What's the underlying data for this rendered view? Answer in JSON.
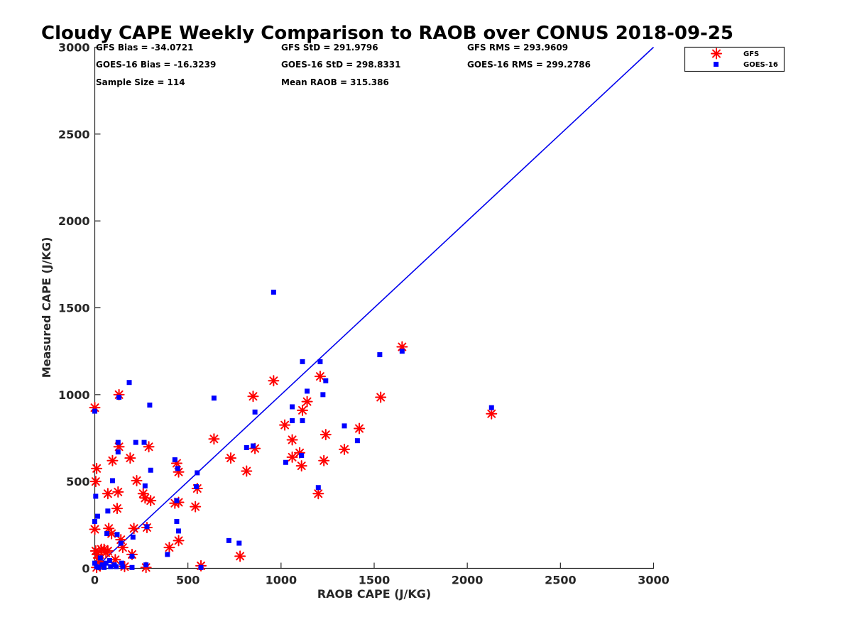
{
  "chart_data": {
    "type": "scatter",
    "title": "Cloudy CAPE Weekly Comparison to RAOB over CONUS 2018-09-25",
    "xlabel": "RAOB CAPE (J/KG)",
    "ylabel": "Measured CAPE (J/KG)",
    "xlim": [
      0,
      3000
    ],
    "ylim": [
      0,
      3000
    ],
    "xticks": [
      0,
      500,
      1000,
      1500,
      2000,
      2500,
      3000
    ],
    "yticks": [
      0,
      500,
      1000,
      1500,
      2000,
      2500,
      3000
    ],
    "grid": false,
    "legend_position": "top-right",
    "reference_line": {
      "from": [
        0,
        0
      ],
      "to": [
        3000,
        3000
      ],
      "color": "#0000ee"
    },
    "stats": [
      "GFS Bias = -34.0721",
      "GFS StD = 291.9796",
      "GFS RMS = 293.9609",
      "GOES-16 Bias = -16.3239",
      "GOES-16 StD = 298.8331",
      "GOES-16 RMS = 299.2786",
      "Sample Size = 114",
      "Mean RAOB = 315.386"
    ],
    "series": [
      {
        "name": "GFS",
        "marker": "asterisk",
        "color": "#ff0000",
        "points": [
          [
            0,
            925
          ],
          [
            5,
            500
          ],
          [
            10,
            575
          ],
          [
            0,
            225
          ],
          [
            5,
            100
          ],
          [
            15,
            80
          ],
          [
            20,
            60
          ],
          [
            25,
            40
          ],
          [
            30,
            20
          ],
          [
            10,
            5
          ],
          [
            35,
            110
          ],
          [
            50,
            110
          ],
          [
            60,
            90
          ],
          [
            70,
            100
          ],
          [
            75,
            230
          ],
          [
            70,
            430
          ],
          [
            90,
            200
          ],
          [
            95,
            620
          ],
          [
            110,
            50
          ],
          [
            120,
            345
          ],
          [
            125,
            440
          ],
          [
            130,
            700
          ],
          [
            130,
            1000
          ],
          [
            140,
            165
          ],
          [
            150,
            120
          ],
          [
            160,
            10
          ],
          [
            190,
            635
          ],
          [
            200,
            80
          ],
          [
            210,
            230
          ],
          [
            225,
            505
          ],
          [
            260,
            430
          ],
          [
            270,
            405
          ],
          [
            275,
            5
          ],
          [
            280,
            235
          ],
          [
            290,
            700
          ],
          [
            300,
            390
          ],
          [
            400,
            120
          ],
          [
            430,
            375
          ],
          [
            440,
            605
          ],
          [
            450,
            555
          ],
          [
            450,
            380
          ],
          [
            450,
            160
          ],
          [
            540,
            355
          ],
          [
            550,
            460
          ],
          [
            570,
            15
          ],
          [
            640,
            745
          ],
          [
            730,
            635
          ],
          [
            780,
            70
          ],
          [
            815,
            560
          ],
          [
            850,
            990
          ],
          [
            860,
            690
          ],
          [
            960,
            1080
          ],
          [
            1020,
            825
          ],
          [
            1060,
            740
          ],
          [
            1060,
            640
          ],
          [
            1100,
            665
          ],
          [
            1110,
            590
          ],
          [
            1115,
            910
          ],
          [
            1140,
            960
          ],
          [
            1200,
            430
          ],
          [
            1210,
            1105
          ],
          [
            1230,
            620
          ],
          [
            1240,
            770
          ],
          [
            1340,
            685
          ],
          [
            1420,
            805
          ],
          [
            1535,
            985
          ],
          [
            1650,
            1275
          ],
          [
            2130,
            890
          ]
        ]
      },
      {
        "name": "GOES-16",
        "marker": "square",
        "color": "#0000ff",
        "points": [
          [
            0,
            905
          ],
          [
            5,
            415
          ],
          [
            15,
            300
          ],
          [
            0,
            270
          ],
          [
            0,
            30
          ],
          [
            10,
            10
          ],
          [
            20,
            5
          ],
          [
            30,
            60
          ],
          [
            40,
            20
          ],
          [
            50,
            5
          ],
          [
            60,
            30
          ],
          [
            65,
            200
          ],
          [
            70,
            330
          ],
          [
            80,
            45
          ],
          [
            85,
            10
          ],
          [
            95,
            505
          ],
          [
            105,
            20
          ],
          [
            115,
            10
          ],
          [
            120,
            195
          ],
          [
            125,
            670
          ],
          [
            125,
            725
          ],
          [
            130,
            985
          ],
          [
            140,
            145
          ],
          [
            145,
            30
          ],
          [
            150,
            10
          ],
          [
            185,
            1070
          ],
          [
            200,
            5
          ],
          [
            200,
            70
          ],
          [
            205,
            180
          ],
          [
            220,
            725
          ],
          [
            265,
            725
          ],
          [
            270,
            475
          ],
          [
            275,
            20
          ],
          [
            280,
            240
          ],
          [
            295,
            940
          ],
          [
            300,
            565
          ],
          [
            390,
            80
          ],
          [
            430,
            625
          ],
          [
            440,
            390
          ],
          [
            440,
            270
          ],
          [
            445,
            575
          ],
          [
            450,
            215
          ],
          [
            545,
            470
          ],
          [
            550,
            550
          ],
          [
            570,
            5
          ],
          [
            640,
            980
          ],
          [
            720,
            160
          ],
          [
            775,
            145
          ],
          [
            815,
            695
          ],
          [
            850,
            705
          ],
          [
            860,
            900
          ],
          [
            960,
            1590
          ],
          [
            1025,
            610
          ],
          [
            1060,
            850
          ],
          [
            1060,
            930
          ],
          [
            1110,
            650
          ],
          [
            1115,
            850
          ],
          [
            1115,
            1190
          ],
          [
            1140,
            1020
          ],
          [
            1200,
            465
          ],
          [
            1210,
            1190
          ],
          [
            1225,
            1000
          ],
          [
            1240,
            1080
          ],
          [
            1340,
            820
          ],
          [
            1410,
            735
          ],
          [
            1530,
            1230
          ],
          [
            1650,
            1250
          ],
          [
            2130,
            925
          ]
        ]
      }
    ]
  }
}
